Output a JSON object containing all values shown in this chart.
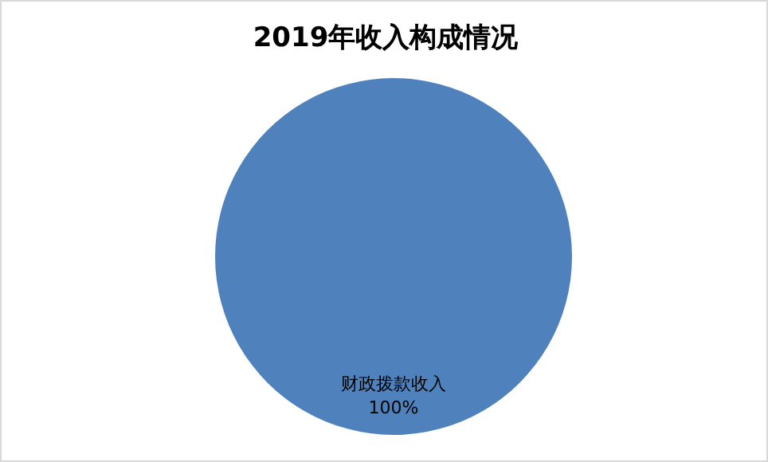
{
  "chart_data": {
    "type": "pie",
    "title": "2019年收入构成情况",
    "categories": [
      "财政拨款收入"
    ],
    "values": [
      100
    ],
    "colors": [
      "#4f81bd"
    ],
    "value_labels": [
      "100%"
    ]
  }
}
